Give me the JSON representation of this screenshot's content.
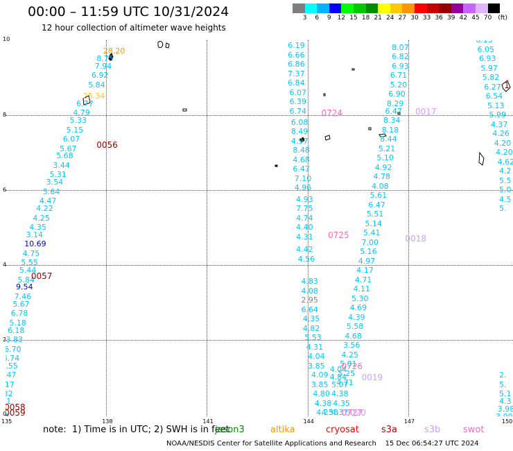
{
  "header": {
    "title": "00:00 – 11:59 UTC 10/31/2024",
    "subtitle": "12 hour collection of altimeter wave heights"
  },
  "legend": {
    "colors": [
      "#7f7f7f",
      "#00ffff",
      "#00b3ff",
      "#0000ff",
      "#00ff00",
      "#00c800",
      "#008c00",
      "#ffff00",
      "#ffc800",
      "#ff9600",
      "#ff0000",
      "#c80000",
      "#960000",
      "#96009c",
      "#c864ff",
      "#e1b4ff",
      "#000000"
    ],
    "labels": [
      "3",
      "6",
      "9",
      "12",
      "15",
      "18",
      "21",
      "24",
      "27",
      "30",
      "33",
      "36",
      "39",
      "42",
      "45",
      "70"
    ],
    "unit": "(ft)"
  },
  "map": {
    "lon_labels": [
      "135",
      "138",
      "141",
      "144",
      "147",
      "150"
    ],
    "lat_labels": [
      "0",
      "2",
      "4",
      "6",
      "8",
      "10"
    ],
    "lon_range": [
      135,
      150
    ],
    "lat_range": [
      0,
      10
    ],
    "grid": "dotted",
    "islands_icon": "island-outline-icon"
  },
  "observations": [
    {
      "lon": 138.2,
      "lat": 9.7,
      "v": "28.20",
      "c": "#ff9600"
    },
    {
      "lon": 138.0,
      "lat": 9.5,
      "v": "8.75",
      "c": "#00c8ff"
    },
    {
      "lon": 137.95,
      "lat": 9.3,
      "v": "7.94",
      "c": "#00c8ff"
    },
    {
      "lon": 137.85,
      "lat": 9.05,
      "v": "6.92",
      "c": "#00c8ff"
    },
    {
      "lon": 137.75,
      "lat": 8.8,
      "v": "5.84",
      "c": "#00c8ff"
    },
    {
      "lon": 137.6,
      "lat": 8.5,
      "v": "25.34",
      "c": "#ffc800"
    },
    {
      "lon": 137.4,
      "lat": 8.3,
      "v": "6.77",
      "c": "#00c8ff"
    },
    {
      "lon": 137.3,
      "lat": 8.05,
      "v": "4.79",
      "c": "#00c8ff"
    },
    {
      "lon": 137.2,
      "lat": 7.85,
      "v": "5.33",
      "c": "#00c8ff"
    },
    {
      "lon": 137.1,
      "lat": 7.6,
      "v": "5.15",
      "c": "#00c8ff"
    },
    {
      "lon": 137.0,
      "lat": 7.35,
      "v": "6.07",
      "c": "#00c8ff"
    },
    {
      "lon": 136.9,
      "lat": 7.1,
      "v": "5.67",
      "c": "#00c8ff"
    },
    {
      "lon": 136.8,
      "lat": 6.9,
      "v": "5.68",
      "c": "#00c8ff"
    },
    {
      "lon": 136.7,
      "lat": 6.65,
      "v": "3.44",
      "c": "#00c8ff"
    },
    {
      "lon": 136.6,
      "lat": 6.4,
      "v": "5.31",
      "c": "#00c8ff"
    },
    {
      "lon": 136.5,
      "lat": 6.2,
      "v": "3.54",
      "c": "#00c8ff"
    },
    {
      "lon": 136.4,
      "lat": 5.95,
      "v": "5.64",
      "c": "#00c8ff"
    },
    {
      "lon": 136.3,
      "lat": 5.7,
      "v": "4.47",
      "c": "#00c8ff"
    },
    {
      "lon": 136.2,
      "lat": 5.5,
      "v": "4.22",
      "c": "#00c8ff"
    },
    {
      "lon": 136.1,
      "lat": 5.25,
      "v": "4.25",
      "c": "#00c8ff"
    },
    {
      "lon": 136.0,
      "lat": 5.0,
      "v": "4.35",
      "c": "#00c8ff"
    },
    {
      "lon": 135.9,
      "lat": 4.8,
      "v": "3.14",
      "c": "#00c8ff"
    },
    {
      "lon": 135.85,
      "lat": 4.55,
      "v": "10.69",
      "c": "#0000c8"
    },
    {
      "lon": 135.8,
      "lat": 4.3,
      "v": "4.75",
      "c": "#00c8ff"
    },
    {
      "lon": 135.75,
      "lat": 4.05,
      "v": "5.55",
      "c": "#00c8ff"
    },
    {
      "lon": 135.7,
      "lat": 3.85,
      "v": "5.44",
      "c": "#00c8ff"
    },
    {
      "lon": 135.65,
      "lat": 3.6,
      "v": "5.84",
      "c": "#00c8ff"
    },
    {
      "lon": 135.6,
      "lat": 3.4,
      "v": "9.54",
      "c": "#0000c8"
    },
    {
      "lon": 135.55,
      "lat": 3.15,
      "v": "7.46",
      "c": "#00c8ff"
    },
    {
      "lon": 135.5,
      "lat": 2.95,
      "v": "5.67",
      "c": "#00c8ff"
    },
    {
      "lon": 135.45,
      "lat": 2.7,
      "v": "6.78",
      "c": "#00c8ff"
    },
    {
      "lon": 135.4,
      "lat": 2.45,
      "v": "5.18",
      "c": "#00c8ff"
    },
    {
      "lon": 135.35,
      "lat": 2.25,
      "v": "6.18",
      "c": "#00c8ff"
    },
    {
      "lon": 135.3,
      "lat": 2.0,
      "v": "3.83",
      "c": "#00c8ff"
    },
    {
      "lon": 135.25,
      "lat": 1.75,
      "v": "6.70",
      "c": "#00c8ff"
    },
    {
      "lon": 135.2,
      "lat": 1.5,
      "v": "6.74",
      "c": "#00c8ff"
    },
    {
      "lon": 135.15,
      "lat": 1.3,
      "v": "5.55",
      "c": "#00c8ff"
    },
    {
      "lon": 135.1,
      "lat": 1.05,
      "v": "7.47",
      "c": "#00c8ff"
    },
    {
      "lon": 135.05,
      "lat": 0.8,
      "v": "6.17",
      "c": "#00c8ff"
    },
    {
      "lon": 135.0,
      "lat": 0.55,
      "v": "6.32",
      "c": "#00c8ff"
    },
    {
      "lon": 134.95,
      "lat": 0.35,
      "v": "5.31",
      "c": "#00c8ff"
    },
    {
      "lon": 134.7,
      "lat": 0.12,
      "v": "23.47",
      "c": "#ffff00"
    },
    {
      "lon": 134.9,
      "lat": -0.05,
      "v": "4.48",
      "c": "#00c8ff"
    },
    {
      "lon": 143.7,
      "lat": 9.85,
      "v": "6.19",
      "c": "#00c8ff"
    },
    {
      "lon": 143.7,
      "lat": 9.6,
      "v": "6.66",
      "c": "#00c8ff"
    },
    {
      "lon": 143.7,
      "lat": 9.35,
      "v": "6.86",
      "c": "#00c8ff"
    },
    {
      "lon": 143.7,
      "lat": 9.1,
      "v": "7.37",
      "c": "#00c8ff"
    },
    {
      "lon": 143.7,
      "lat": 8.85,
      "v": "6.84",
      "c": "#00c8ff"
    },
    {
      "lon": 143.75,
      "lat": 8.6,
      "v": "6.07",
      "c": "#00c8ff"
    },
    {
      "lon": 143.75,
      "lat": 8.35,
      "v": "6.39",
      "c": "#00c8ff"
    },
    {
      "lon": 143.75,
      "lat": 8.1,
      "v": "6.74",
      "c": "#00c8ff"
    },
    {
      "lon": 143.8,
      "lat": 7.8,
      "v": "6.08",
      "c": "#00c8ff"
    },
    {
      "lon": 143.8,
      "lat": 7.55,
      "v": "8.49",
      "c": "#00c8ff"
    },
    {
      "lon": 143.8,
      "lat": 7.3,
      "v": "4.97",
      "c": "#00c8ff"
    },
    {
      "lon": 143.85,
      "lat": 7.05,
      "v": "8.48",
      "c": "#00c8ff"
    },
    {
      "lon": 143.85,
      "lat": 6.8,
      "v": "4.68",
      "c": "#00c8ff"
    },
    {
      "lon": 143.85,
      "lat": 6.55,
      "v": "6.47",
      "c": "#00c8ff"
    },
    {
      "lon": 143.9,
      "lat": 6.3,
      "v": "7.10",
      "c": "#00c8ff"
    },
    {
      "lon": 143.9,
      "lat": 6.05,
      "v": "4.96",
      "c": "#00c8ff"
    },
    {
      "lon": 143.95,
      "lat": 5.75,
      "v": "4.93",
      "c": "#00c8ff"
    },
    {
      "lon": 143.95,
      "lat": 5.5,
      "v": "7.75",
      "c": "#00c8ff"
    },
    {
      "lon": 143.95,
      "lat": 5.25,
      "v": "4.74",
      "c": "#00c8ff"
    },
    {
      "lon": 143.95,
      "lat": 5.0,
      "v": "4.40",
      "c": "#00c8ff"
    },
    {
      "lon": 143.95,
      "lat": 4.75,
      "v": "4.31",
      "c": "#00c8ff"
    },
    {
      "lon": 143.95,
      "lat": 4.4,
      "v": "4.42",
      "c": "#00c8ff"
    },
    {
      "lon": 144.0,
      "lat": 4.15,
      "v": "4.56",
      "c": "#00c8ff"
    },
    {
      "lon": 144.1,
      "lat": 3.55,
      "v": "4.83",
      "c": "#00c8ff"
    },
    {
      "lon": 144.1,
      "lat": 3.3,
      "v": "4.08",
      "c": "#00c8ff"
    },
    {
      "lon": 144.1,
      "lat": 3.05,
      "v": "2.95",
      "c": "#7f7f7f"
    },
    {
      "lon": 144.1,
      "lat": 2.8,
      "v": "6.64",
      "c": "#00c8ff"
    },
    {
      "lon": 144.15,
      "lat": 2.55,
      "v": "4.35",
      "c": "#00c8ff"
    },
    {
      "lon": 144.15,
      "lat": 2.3,
      "v": "4.82",
      "c": "#00c8ff"
    },
    {
      "lon": 144.2,
      "lat": 2.05,
      "v": "5.53",
      "c": "#00c8ff"
    },
    {
      "lon": 144.25,
      "lat": 1.8,
      "v": "4.31",
      "c": "#00c8ff"
    },
    {
      "lon": 144.3,
      "lat": 1.55,
      "v": "4.04",
      "c": "#00c8ff"
    },
    {
      "lon": 144.3,
      "lat": 1.3,
      "v": "3.85",
      "c": "#00c8ff"
    },
    {
      "lon": 144.95,
      "lat": 1.2,
      "v": "4.04",
      "c": "#00c8ff"
    },
    {
      "lon": 144.95,
      "lat": 1.0,
      "v": "4.84",
      "c": "#00c8ff"
    },
    {
      "lon": 145.0,
      "lat": 0.8,
      "v": "5.07",
      "c": "#00c8ff"
    },
    {
      "lon": 145.0,
      "lat": 0.55,
      "v": "4.38",
      "c": "#00c8ff"
    },
    {
      "lon": 145.05,
      "lat": 0.3,
      "v": "4.35",
      "c": "#00c8ff"
    },
    {
      "lon": 144.4,
      "lat": 1.05,
      "v": "4.09",
      "c": "#00c8ff"
    },
    {
      "lon": 144.4,
      "lat": 0.8,
      "v": "3.85",
      "c": "#00c8ff"
    },
    {
      "lon": 144.45,
      "lat": 0.55,
      "v": "4.80",
      "c": "#00c8ff"
    },
    {
      "lon": 144.5,
      "lat": 0.3,
      "v": "4.38",
      "c": "#00c8ff"
    },
    {
      "lon": 144.55,
      "lat": 0.05,
      "v": "4.23",
      "c": "#00c8ff"
    },
    {
      "lon": 144.7,
      "lat": 0.05,
      "v": "4.53",
      "c": "#00c8ff"
    },
    {
      "lon": 145.0,
      "lat": 0.05,
      "v": "4.37",
      "c": "#00c8ff"
    },
    {
      "lon": 146.8,
      "lat": 9.8,
      "v": "8.07",
      "c": "#00c8ff"
    },
    {
      "lon": 146.8,
      "lat": 9.55,
      "v": "6.82",
      "c": "#00c8ff"
    },
    {
      "lon": 146.8,
      "lat": 9.3,
      "v": "6.93",
      "c": "#00c8ff"
    },
    {
      "lon": 146.75,
      "lat": 9.05,
      "v": "6.71",
      "c": "#00c8ff"
    },
    {
      "lon": 146.75,
      "lat": 8.8,
      "v": "5.20",
      "c": "#00c8ff"
    },
    {
      "lon": 146.7,
      "lat": 8.55,
      "v": "6.90",
      "c": "#00c8ff"
    },
    {
      "lon": 146.65,
      "lat": 8.3,
      "v": "8.29",
      "c": "#00c8ff"
    },
    {
      "lon": 146.6,
      "lat": 8.1,
      "v": "6.47",
      "c": "#00c8ff"
    },
    {
      "lon": 146.55,
      "lat": 7.85,
      "v": "8.34",
      "c": "#00c8ff"
    },
    {
      "lon": 146.5,
      "lat": 7.6,
      "v": "8.18",
      "c": "#00c8ff"
    },
    {
      "lon": 146.45,
      "lat": 7.35,
      "v": "8.44",
      "c": "#00c8ff"
    },
    {
      "lon": 146.4,
      "lat": 7.1,
      "v": "5.21",
      "c": "#00c8ff"
    },
    {
      "lon": 146.35,
      "lat": 6.85,
      "v": "5.10",
      "c": "#00c8ff"
    },
    {
      "lon": 146.3,
      "lat": 6.6,
      "v": "4.92",
      "c": "#00c8ff"
    },
    {
      "lon": 146.25,
      "lat": 6.35,
      "v": "4.78",
      "c": "#00c8ff"
    },
    {
      "lon": 146.2,
      "lat": 6.1,
      "v": "4.08",
      "c": "#00c8ff"
    },
    {
      "lon": 146.15,
      "lat": 5.85,
      "v": "5.61",
      "c": "#00c8ff"
    },
    {
      "lon": 146.1,
      "lat": 5.6,
      "v": "6.47",
      "c": "#00c8ff"
    },
    {
      "lon": 146.05,
      "lat": 5.35,
      "v": "5.51",
      "c": "#00c8ff"
    },
    {
      "lon": 146.0,
      "lat": 5.1,
      "v": "5.14",
      "c": "#00c8ff"
    },
    {
      "lon": 145.95,
      "lat": 4.85,
      "v": "5.41",
      "c": "#00c8ff"
    },
    {
      "lon": 145.9,
      "lat": 4.6,
      "v": "7.00",
      "c": "#00c8ff"
    },
    {
      "lon": 145.85,
      "lat": 4.35,
      "v": "5.16",
      "c": "#00c8ff"
    },
    {
      "lon": 145.8,
      "lat": 4.1,
      "v": "4.97",
      "c": "#00c8ff"
    },
    {
      "lon": 145.75,
      "lat": 3.85,
      "v": "4.17",
      "c": "#00c8ff"
    },
    {
      "lon": 145.7,
      "lat": 3.6,
      "v": "4.71",
      "c": "#00c8ff"
    },
    {
      "lon": 145.65,
      "lat": 3.35,
      "v": "4.11",
      "c": "#00c8ff"
    },
    {
      "lon": 145.6,
      "lat": 3.1,
      "v": "5.30",
      "c": "#00c8ff"
    },
    {
      "lon": 145.55,
      "lat": 2.85,
      "v": "4.69",
      "c": "#00c8ff"
    },
    {
      "lon": 145.5,
      "lat": 2.6,
      "v": "4.39",
      "c": "#00c8ff"
    },
    {
      "lon": 145.45,
      "lat": 2.35,
      "v": "5.58",
      "c": "#00c8ff"
    },
    {
      "lon": 145.4,
      "lat": 2.1,
      "v": "4.68",
      "c": "#00c8ff"
    },
    {
      "lon": 145.35,
      "lat": 1.85,
      "v": "3.56",
      "c": "#00c8ff"
    },
    {
      "lon": 145.3,
      "lat": 1.6,
      "v": "4.25",
      "c": "#00c8ff"
    },
    {
      "lon": 145.25,
      "lat": 1.35,
      "v": "5.01",
      "c": "#00c8ff"
    },
    {
      "lon": 145.2,
      "lat": 1.1,
      "v": "5.25",
      "c": "#00c8ff"
    },
    {
      "lon": 145.15,
      "lat": 0.85,
      "v": "4.71",
      "c": "#00c8ff"
    },
    {
      "lon": 149.3,
      "lat": 10.0,
      "v": "6.13",
      "c": "#00c8ff"
    },
    {
      "lon": 149.35,
      "lat": 9.75,
      "v": "6.05",
      "c": "#00c8ff"
    },
    {
      "lon": 149.4,
      "lat": 9.5,
      "v": "6.93",
      "c": "#00c8ff"
    },
    {
      "lon": 149.45,
      "lat": 9.25,
      "v": "5.97",
      "c": "#00c8ff"
    },
    {
      "lon": 149.5,
      "lat": 9.0,
      "v": "5.82",
      "c": "#00c8ff"
    },
    {
      "lon": 149.55,
      "lat": 8.75,
      "v": "6.27",
      "c": "#00c8ff"
    },
    {
      "lon": 149.6,
      "lat": 8.5,
      "v": "6.54",
      "c": "#00c8ff"
    },
    {
      "lon": 149.65,
      "lat": 8.25,
      "v": "5.13",
      "c": "#00c8ff"
    },
    {
      "lon": 149.7,
      "lat": 8.0,
      "v": "5.99",
      "c": "#00c8ff"
    },
    {
      "lon": 149.75,
      "lat": 7.75,
      "v": "4.37",
      "c": "#00c8ff"
    },
    {
      "lon": 149.8,
      "lat": 7.5,
      "v": "4.26",
      "c": "#00c8ff"
    },
    {
      "lon": 149.85,
      "lat": 7.25,
      "v": "4.20",
      "c": "#00c8ff"
    },
    {
      "lon": 149.9,
      "lat": 7.0,
      "v": "4.20",
      "c": "#00c8ff"
    },
    {
      "lon": 149.95,
      "lat": 6.75,
      "v": "4.62",
      "c": "#00c8ff"
    },
    {
      "lon": 150.0,
      "lat": 6.5,
      "v": "4.2",
      "c": "#00c8ff"
    },
    {
      "lon": 150.0,
      "lat": 6.25,
      "v": "5.5",
      "c": "#00c8ff"
    },
    {
      "lon": 150.0,
      "lat": 6.0,
      "v": "5.0",
      "c": "#00c8ff"
    },
    {
      "lon": 150.0,
      "lat": 5.75,
      "v": "4.5",
      "c": "#00c8ff"
    },
    {
      "lon": 150.0,
      "lat": 5.5,
      "v": "5.",
      "c": "#00c8ff"
    },
    {
      "lon": 150.0,
      "lat": 1.05,
      "v": "2.",
      "c": "#00c8ff"
    },
    {
      "lon": 150.0,
      "lat": 0.8,
      "v": "5.",
      "c": "#00c8ff"
    },
    {
      "lon": 150.0,
      "lat": 0.55,
      "v": "5.1",
      "c": "#00c8ff"
    },
    {
      "lon": 150.0,
      "lat": 0.35,
      "v": "4.3",
      "c": "#00c8ff"
    },
    {
      "lon": 149.95,
      "lat": 0.15,
      "v": "3.98",
      "c": "#00c8ff"
    },
    {
      "lon": 149.9,
      "lat": -0.05,
      "v": "3.90",
      "c": "#00c8ff"
    }
  ],
  "pass_labels": [
    {
      "lon": 138.0,
      "lat": 7.2,
      "v": "0056",
      "c": "#960000"
    },
    {
      "lon": 136.05,
      "lat": 3.7,
      "v": "0057",
      "c": "#960000"
    },
    {
      "lon": 135.25,
      "lat": 0.2,
      "v": "0058",
      "c": "#960000"
    },
    {
      "lon": 135.25,
      "lat": 0.05,
      "v": "0059",
      "c": "#960000"
    },
    {
      "lon": 144.7,
      "lat": 8.05,
      "v": "0724",
      "c": "#ff69b4"
    },
    {
      "lon": 144.9,
      "lat": 4.8,
      "v": "0725",
      "c": "#ff69b4"
    },
    {
      "lon": 145.3,
      "lat": 1.3,
      "v": "0726",
      "c": "#ff69b4"
    },
    {
      "lon": 145.3,
      "lat": 0.05,
      "v": "0727",
      "c": "#ff69b4"
    },
    {
      "lon": 147.5,
      "lat": 8.1,
      "v": "0017",
      "c": "#c8a0ff"
    },
    {
      "lon": 147.2,
      "lat": 4.7,
      "v": "0018",
      "c": "#c8a0ff"
    },
    {
      "lon": 145.9,
      "lat": 1.0,
      "v": "0019",
      "c": "#c8a0ff"
    },
    {
      "lon": 145.4,
      "lat": 0.05,
      "v": "0020",
      "c": "#c8a0ff"
    },
    {
      "lon": 150.15,
      "lat": 8.8,
      "v": "1",
      "c": "#960000"
    }
  ],
  "footer": {
    "note": "note:  1) Time is in UTC; 2) SWH is in feet",
    "satellites": [
      {
        "name": "jason3",
        "c": "#008c00"
      },
      {
        "name": "altika",
        "c": "#ff9600"
      },
      {
        "name": "cryosat",
        "c": "#ff0000"
      },
      {
        "name": "s3a",
        "c": "#c80000"
      },
      {
        "name": "s3b",
        "c": "#c8a0ff"
      },
      {
        "name": "swot",
        "c": "#ff69b4"
      }
    ],
    "credit": "NOAA/NESDIS Center for Satellite Applications and Research    15 Dec 06:54:27 UTC 2024"
  }
}
